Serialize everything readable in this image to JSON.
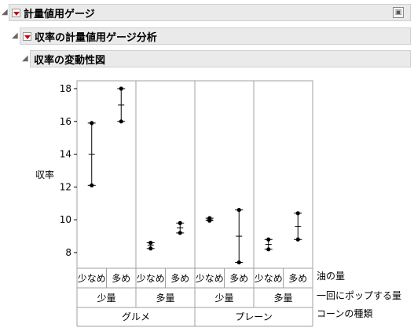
{
  "report": {
    "title": "計量値用ゲージ",
    "analysis_title": "収率の計量値用ゲージ分析",
    "chart_section_title": "収率の変動性図"
  },
  "labels": {
    "row_oil": "油の量",
    "row_pop": "一回にポップする量",
    "row_cone": "コーンの種類"
  },
  "chart_data": {
    "type": "variability",
    "ylabel": "収率",
    "ylim": [
      7,
      18.5
    ],
    "yticks": [
      8,
      10,
      12,
      14,
      16,
      18
    ],
    "groups": [
      {
        "cone": "グルメ",
        "pop": "少量",
        "oil": "少なめ",
        "points": [
          12.1,
          15.9
        ],
        "mean": 14.0
      },
      {
        "cone": "グルメ",
        "pop": "少量",
        "oil": "多め",
        "points": [
          16.0,
          18.0
        ],
        "mean": 17.0
      },
      {
        "cone": "グルメ",
        "pop": "多量",
        "oil": "少なめ",
        "points": [
          8.25,
          8.6
        ],
        "mean": 8.45
      },
      {
        "cone": "グルメ",
        "pop": "多量",
        "oil": "多め",
        "points": [
          9.2,
          9.8
        ],
        "mean": 9.5
      },
      {
        "cone": "プレーン",
        "pop": "少量",
        "oil": "少なめ",
        "points": [
          9.95,
          10.1
        ],
        "mean": 10.0
      },
      {
        "cone": "プレーン",
        "pop": "少量",
        "oil": "多め",
        "points": [
          7.4,
          10.6
        ],
        "mean": 9.0
      },
      {
        "cone": "プレーン",
        "pop": "多量",
        "oil": "少なめ",
        "points": [
          8.2,
          8.8
        ],
        "mean": 8.5
      },
      {
        "cone": "プレーン",
        "pop": "多量",
        "oil": "多め",
        "points": [
          8.8,
          10.4
        ],
        "mean": 9.6
      }
    ],
    "pop_levels": [
      "少量",
      "多量",
      "少量",
      "多量"
    ],
    "cone_levels": [
      "グルメ",
      "プレーン"
    ]
  }
}
